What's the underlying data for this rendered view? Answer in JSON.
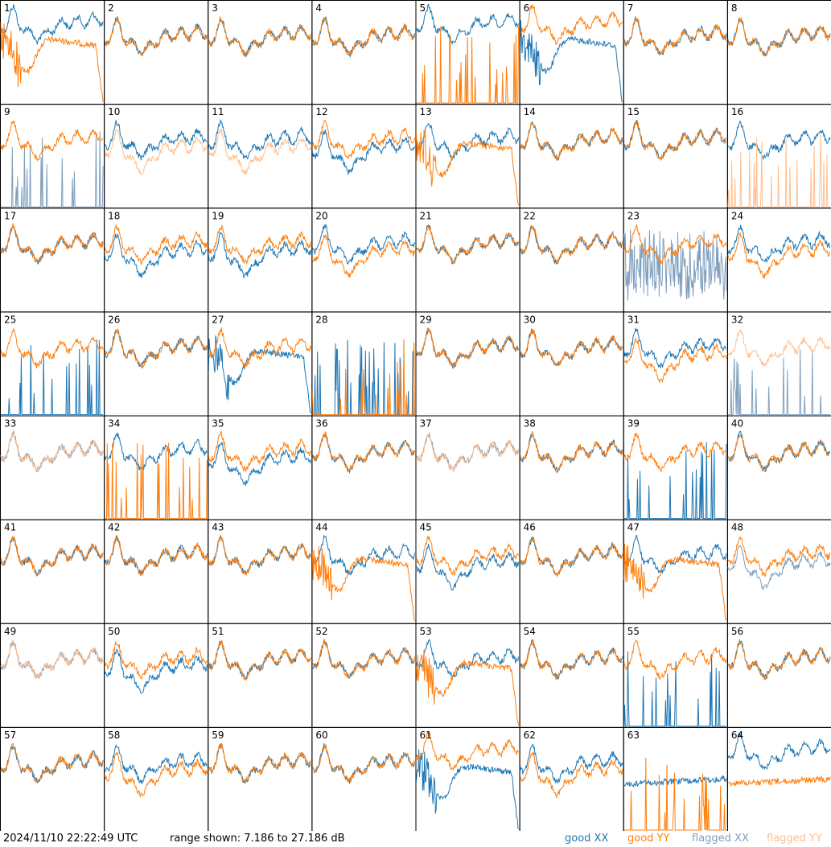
{
  "footer": {
    "timestamp": "2024/11/10 22:22:49 UTC",
    "range": "range shown: 7.186 to 27.186 dB"
  },
  "legend": [
    {
      "name": "good XX",
      "color": "#1f77b4"
    },
    {
      "name": "good YY",
      "color": "#ff7f0e"
    },
    {
      "name": "flagged XX",
      "color": "#7f9fbf"
    },
    {
      "name": "flagged YY",
      "color": "#ffbf8f"
    }
  ],
  "chart_data": {
    "type": "line",
    "grid": {
      "rows": 8,
      "cols": 8
    },
    "ylim": [
      7.186,
      27.186
    ],
    "y_unit": "dB",
    "panels": [
      {
        "label": "1",
        "xx": "good",
        "yy": "good",
        "xx_shape": "high",
        "yy_shape": "sag"
      },
      {
        "label": "2",
        "xx": "good",
        "yy": "good",
        "xx_shape": "normal",
        "yy_shape": "normal"
      },
      {
        "label": "3",
        "xx": "good",
        "yy": "good",
        "xx_shape": "normal",
        "yy_shape": "normal"
      },
      {
        "label": "4",
        "xx": "good",
        "yy": "good",
        "xx_shape": "normal",
        "yy_shape": "normal"
      },
      {
        "label": "5",
        "xx": "good",
        "yy": "good",
        "xx_shape": "high",
        "yy_shape": "spikes"
      },
      {
        "label": "6",
        "xx": "good",
        "yy": "good",
        "xx_shape": "sag",
        "yy_shape": "high"
      },
      {
        "label": "7",
        "xx": "good",
        "yy": "good",
        "xx_shape": "normal",
        "yy_shape": "normal"
      },
      {
        "label": "8",
        "xx": "good",
        "yy": "good",
        "xx_shape": "normal",
        "yy_shape": "normal"
      },
      {
        "label": "9",
        "xx": "flagged",
        "yy": "good",
        "xx_shape": "spikes",
        "yy_shape": "normal"
      },
      {
        "label": "10",
        "xx": "good",
        "yy": "flagged",
        "xx_shape": "normal",
        "yy_shape": "lower"
      },
      {
        "label": "11",
        "xx": "good",
        "yy": "flagged",
        "xx_shape": "normal",
        "yy_shape": "lower"
      },
      {
        "label": "12",
        "xx": "good",
        "yy": "good",
        "xx_shape": "lower",
        "yy_shape": "normal"
      },
      {
        "label": "13",
        "xx": "good",
        "yy": "good",
        "xx_shape": "normal",
        "yy_shape": "sag"
      },
      {
        "label": "14",
        "xx": "good",
        "yy": "good",
        "xx_shape": "normal",
        "yy_shape": "normal"
      },
      {
        "label": "15",
        "xx": "good",
        "yy": "good",
        "xx_shape": "normal",
        "yy_shape": "normal"
      },
      {
        "label": "16",
        "xx": "good",
        "yy": "flagged",
        "xx_shape": "normal",
        "yy_shape": "spikes"
      },
      {
        "label": "17",
        "xx": "good",
        "yy": "good",
        "xx_shape": "normal",
        "yy_shape": "normal"
      },
      {
        "label": "18",
        "xx": "good",
        "yy": "good",
        "xx_shape": "lower",
        "yy_shape": "normal"
      },
      {
        "label": "19",
        "xx": "good",
        "yy": "good",
        "xx_shape": "lower",
        "yy_shape": "normal"
      },
      {
        "label": "20",
        "xx": "good",
        "yy": "good",
        "xx_shape": "normal",
        "yy_shape": "lower"
      },
      {
        "label": "21",
        "xx": "good",
        "yy": "good",
        "xx_shape": "normal",
        "yy_shape": "normal"
      },
      {
        "label": "22",
        "xx": "good",
        "yy": "good",
        "xx_shape": "normal",
        "yy_shape": "normal"
      },
      {
        "label": "23",
        "xx": "flagged",
        "yy": "good",
        "xx_shape": "noisy",
        "yy_shape": "normal"
      },
      {
        "label": "24",
        "xx": "good",
        "yy": "good",
        "xx_shape": "normal",
        "yy_shape": "lower"
      },
      {
        "label": "25",
        "xx": "good",
        "yy": "good",
        "xx_shape": "spikes",
        "yy_shape": "normal"
      },
      {
        "label": "26",
        "xx": "good",
        "yy": "good",
        "xx_shape": "normal",
        "yy_shape": "normal"
      },
      {
        "label": "27",
        "xx": "good",
        "yy": "good",
        "xx_shape": "sag",
        "yy_shape": "normal"
      },
      {
        "label": "28",
        "xx": "good",
        "yy": "good",
        "xx_shape": "spikes",
        "yy_shape": "spikes"
      },
      {
        "label": "29",
        "xx": "good",
        "yy": "good",
        "xx_shape": "normal",
        "yy_shape": "normal"
      },
      {
        "label": "30",
        "xx": "good",
        "yy": "good",
        "xx_shape": "normal",
        "yy_shape": "normal"
      },
      {
        "label": "31",
        "xx": "good",
        "yy": "good",
        "xx_shape": "normal",
        "yy_shape": "lower"
      },
      {
        "label": "32",
        "xx": "flagged",
        "yy": "flagged",
        "xx_shape": "spikes",
        "yy_shape": "normal"
      },
      {
        "label": "33",
        "xx": "flagged",
        "yy": "flagged",
        "xx_shape": "normal",
        "yy_shape": "normal"
      },
      {
        "label": "34",
        "xx": "good",
        "yy": "good",
        "xx_shape": "normal",
        "yy_shape": "spikes"
      },
      {
        "label": "35",
        "xx": "good",
        "yy": "good",
        "xx_shape": "lower",
        "yy_shape": "normal"
      },
      {
        "label": "36",
        "xx": "good",
        "yy": "good",
        "xx_shape": "normal",
        "yy_shape": "normal"
      },
      {
        "label": "37",
        "xx": "flagged",
        "yy": "flagged",
        "xx_shape": "normal",
        "yy_shape": "normal"
      },
      {
        "label": "38",
        "xx": "good",
        "yy": "good",
        "xx_shape": "normal",
        "yy_shape": "normal"
      },
      {
        "label": "39",
        "xx": "good",
        "yy": "good",
        "xx_shape": "spikes",
        "yy_shape": "normal"
      },
      {
        "label": "40",
        "xx": "good",
        "yy": "good",
        "xx_shape": "normal",
        "yy_shape": "normal"
      },
      {
        "label": "41",
        "xx": "good",
        "yy": "good",
        "xx_shape": "normal",
        "yy_shape": "normal"
      },
      {
        "label": "42",
        "xx": "good",
        "yy": "good",
        "xx_shape": "normal",
        "yy_shape": "normal"
      },
      {
        "label": "43",
        "xx": "good",
        "yy": "good",
        "xx_shape": "normal",
        "yy_shape": "normal"
      },
      {
        "label": "44",
        "xx": "good",
        "yy": "good",
        "xx_shape": "normal",
        "yy_shape": "sag"
      },
      {
        "label": "45",
        "xx": "good",
        "yy": "good",
        "xx_shape": "lower",
        "yy_shape": "normal"
      },
      {
        "label": "46",
        "xx": "good",
        "yy": "good",
        "xx_shape": "normal",
        "yy_shape": "normal"
      },
      {
        "label": "47",
        "xx": "good",
        "yy": "good",
        "xx_shape": "normal",
        "yy_shape": "sag"
      },
      {
        "label": "48",
        "xx": "flagged",
        "yy": "good",
        "xx_shape": "lower",
        "yy_shape": "normal"
      },
      {
        "label": "49",
        "xx": "flagged",
        "yy": "flagged",
        "xx_shape": "normal",
        "yy_shape": "normal"
      },
      {
        "label": "50",
        "xx": "good",
        "yy": "good",
        "xx_shape": "lower",
        "yy_shape": "normal"
      },
      {
        "label": "51",
        "xx": "good",
        "yy": "good",
        "xx_shape": "normal",
        "yy_shape": "normal"
      },
      {
        "label": "52",
        "xx": "good",
        "yy": "good",
        "xx_shape": "normal",
        "yy_shape": "normal"
      },
      {
        "label": "53",
        "xx": "good",
        "yy": "good",
        "xx_shape": "normal",
        "yy_shape": "sag"
      },
      {
        "label": "54",
        "xx": "good",
        "yy": "good",
        "xx_shape": "normal",
        "yy_shape": "normal"
      },
      {
        "label": "55",
        "xx": "good",
        "yy": "good",
        "xx_shape": "spikes",
        "yy_shape": "normal"
      },
      {
        "label": "56",
        "xx": "good",
        "yy": "good",
        "xx_shape": "normal",
        "yy_shape": "normal"
      },
      {
        "label": "57",
        "xx": "good",
        "yy": "good",
        "xx_shape": "normal",
        "yy_shape": "normal"
      },
      {
        "label": "58",
        "xx": "good",
        "yy": "good",
        "xx_shape": "normal",
        "yy_shape": "lower"
      },
      {
        "label": "59",
        "xx": "good",
        "yy": "good",
        "xx_shape": "normal",
        "yy_shape": "normal"
      },
      {
        "label": "60",
        "xx": "good",
        "yy": "good",
        "xx_shape": "normal",
        "yy_shape": "normal"
      },
      {
        "label": "61",
        "xx": "good",
        "yy": "good",
        "xx_shape": "sag",
        "yy_shape": "high"
      },
      {
        "label": "62",
        "xx": "good",
        "yy": "good",
        "xx_shape": "normal",
        "yy_shape": "lower"
      },
      {
        "label": "63",
        "xx": "good",
        "yy": "good",
        "xx_shape": "flat",
        "yy_shape": "spikes"
      },
      {
        "label": "64",
        "xx": "good",
        "yy": "good",
        "xx_shape": "high",
        "yy_shape": "flat"
      }
    ]
  }
}
